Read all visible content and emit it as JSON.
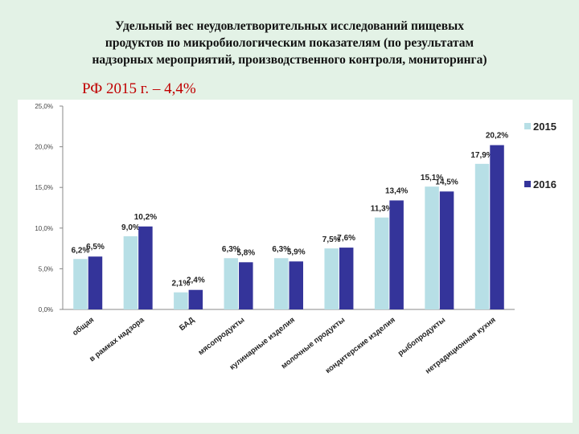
{
  "title_lines": [
    "Удельный вес неудовлетворительных исследований пищевых",
    "продуктов по микробиологическим показателям (по результатам",
    "надзорных мероприятий, производственного контроля, мониторинга)"
  ],
  "subtitle": "РФ 2015 г. – 4,4%",
  "chart_data": {
    "type": "bar",
    "categories": [
      "общая",
      "в рамках надзора",
      "БАД",
      "мясопродукты",
      "кулинарные изделия",
      "молочные продукты",
      "кондитерские изделия",
      "рыбопродукты",
      "нетрадиционная кухня"
    ],
    "series": [
      {
        "name": "2015",
        "color": "#b7dfe6",
        "values": [
          6.2,
          9.0,
          2.1,
          6.3,
          6.3,
          7.5,
          11.3,
          15.1,
          17.9
        ]
      },
      {
        "name": "2016",
        "color": "#34349a",
        "values": [
          6.5,
          10.2,
          2.4,
          5.8,
          5.9,
          7.6,
          13.4,
          14.5,
          20.2
        ]
      }
    ],
    "data_labels": [
      [
        "6,2%",
        "9,0%",
        "2,1%",
        "6,3%",
        "6,3%",
        "7,5%",
        "11,3%",
        "15,1%",
        "17,9%"
      ],
      [
        "6,5%",
        "10,2%",
        "2,4%",
        "5,8%",
        "5,9%",
        "7,6%",
        "13,4%",
        "14,5%",
        "20,2%"
      ]
    ],
    "yticks": [
      "0,0%",
      "5,0%",
      "10,0%",
      "15,0%",
      "20,0%",
      "25,0%"
    ],
    "ylim": [
      0,
      25
    ],
    "grid": false,
    "legend_position": "right"
  }
}
